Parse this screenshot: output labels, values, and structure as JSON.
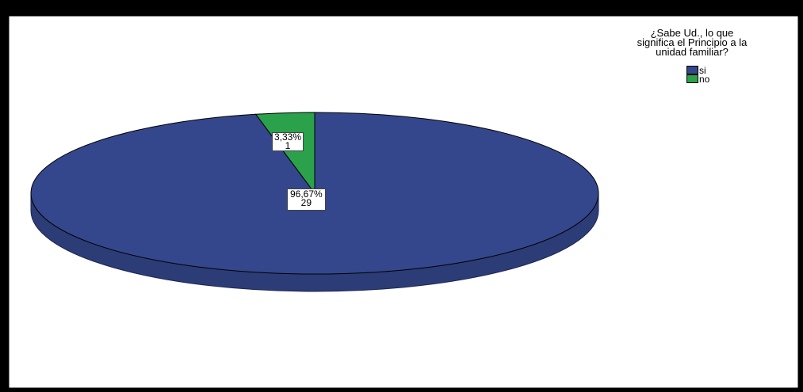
{
  "chart_data": {
    "type": "pie",
    "title": "¿Sabe Ud., lo que significa el Principio a la unidad familiar?",
    "title_lines": [
      "¿Sabe Ud., lo que",
      "significa el Principio a la",
      "unidad familiar?"
    ],
    "categories": [
      "si",
      "no"
    ],
    "values": [
      29,
      1
    ],
    "percent_labels": [
      "96,67%",
      "3,33%"
    ],
    "count_labels": [
      "29",
      "1"
    ],
    "colors": [
      "#34478c",
      "#2aa14a"
    ],
    "legend_position": "top-right",
    "style": "3d"
  }
}
